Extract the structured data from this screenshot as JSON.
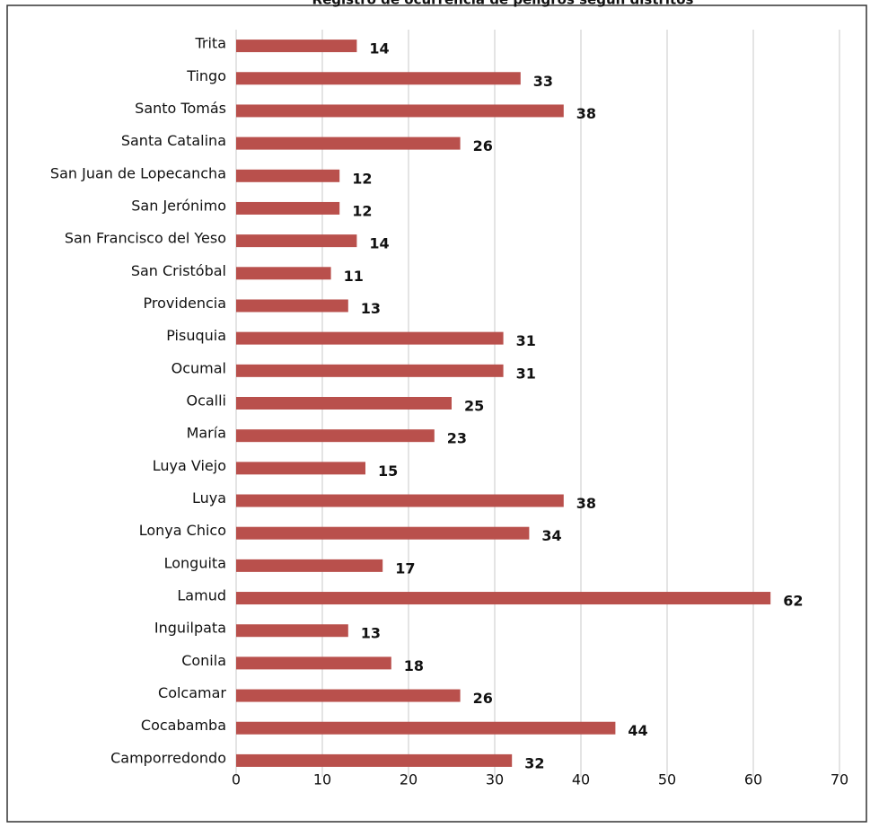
{
  "chart_data": {
    "type": "hbar",
    "title": "Registro de ocurrencia de peligros según distritos",
    "categories": [
      "Trita",
      "Tingo",
      "Santo Tomás",
      "Santa Catalina",
      "San Juan de Lopecancha",
      "San Jerónimo",
      "San Francisco del Yeso",
      "San Cristóbal",
      "Providencia",
      "Pisuquia",
      "Ocumal",
      "Ocalli",
      "María",
      "Luya Viejo",
      "Luya",
      "Lonya Chico",
      "Longuita",
      "Lamud",
      "Inguilpata",
      "Conila",
      "Colcamar",
      "Cocabamba",
      "Camporredondo"
    ],
    "values": [
      14,
      33,
      38,
      26,
      12,
      12,
      14,
      11,
      13,
      31,
      31,
      25,
      23,
      15,
      38,
      34,
      17,
      62,
      13,
      18,
      26,
      44,
      32
    ],
    "color": "#b9504c",
    "xlim": [
      0,
      70
    ],
    "xticks": [
      0,
      10,
      20,
      30,
      40,
      50,
      60,
      70
    ],
    "grid": true
  }
}
